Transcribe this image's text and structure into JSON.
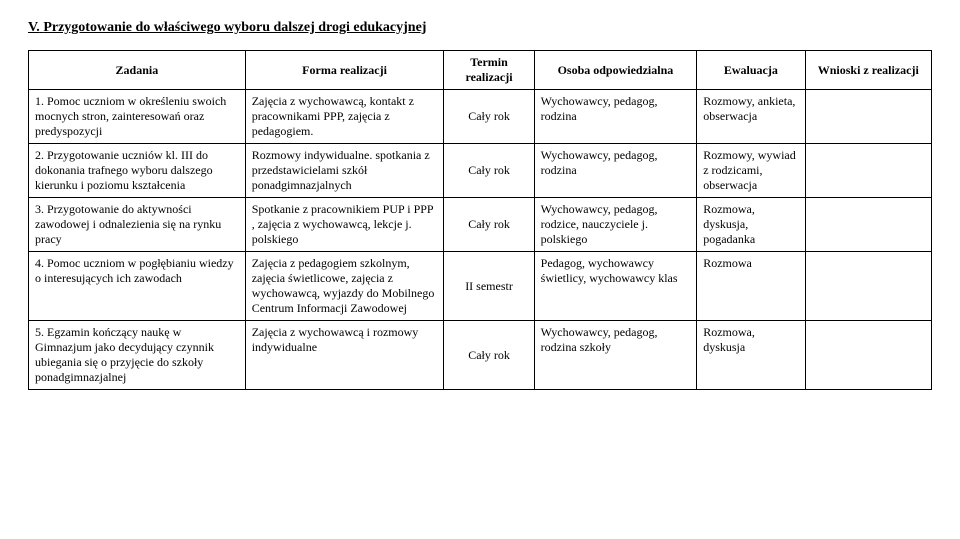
{
  "section": {
    "number": "V.",
    "title": "Przygotowanie do właściwego wyboru dalszej drogi edukacyjnej"
  },
  "headers": {
    "zadania": "Zadania",
    "forma": "Forma realizacji",
    "termin": "Termin realizacji",
    "osoba": "Osoba odpowiedzialna",
    "ewaluacja": "Ewaluacja",
    "wnioski": "Wnioski z realizacji"
  },
  "rows": [
    {
      "zadanie": "1. Pomoc uczniom w określeniu swoich mocnych stron, zainteresowań oraz predyspozycji",
      "forma": "Zajęcia z wychowawcą, kontakt z pracownikami PPP, zajęcia z pedagogiem.",
      "termin": "Cały rok",
      "osoba": "Wychowawcy, pedagog, rodzina",
      "ewaluacja": "Rozmowy, ankieta, obserwacja",
      "wnioski": ""
    },
    {
      "zadanie": "2. Przygotowanie uczniów kl. III do dokonania trafnego wyboru dalszego kierunku i poziomu kształcenia",
      "forma": "Rozmowy indywidualne. spotkania z przedstawicielami szkół ponadgimnazjalnych",
      "termin": "Cały rok",
      "osoba": "Wychowawcy, pedagog, rodzina",
      "ewaluacja": "Rozmowy, wywiad z rodzicami, obserwacja",
      "wnioski": ""
    },
    {
      "zadanie": "3. Przygotowanie do aktywności zawodowej i odnalezienia się na rynku pracy",
      "forma": "Spotkanie z pracownikiem PUP i PPP , zajęcia z wychowawcą, lekcje j. polskiego",
      "termin": "Cały rok",
      "osoba": "Wychowawcy, pedagog, rodzice, nauczyciele j. polskiego",
      "ewaluacja": "Rozmowa, dyskusja, pogadanka",
      "wnioski": ""
    },
    {
      "zadanie": "4. Pomoc uczniom w pogłębianiu wiedzy o interesujących ich zawodach",
      "forma": "Zajęcia z pedagogiem szkolnym, zajęcia świetlicowe, zajęcia z wychowawcą, wyjazdy do Mobilnego Centrum Informacji Zawodowej",
      "termin": "II semestr",
      "osoba": "Pedagog, wychowawcy świetlicy, wychowawcy klas",
      "ewaluacja": "Rozmowa",
      "wnioski": ""
    },
    {
      "zadanie": "5. Egzamin kończący naukę w Gimnazjum jako decydujący czynnik ubiegania się o przyjęcie do szkoły ponadgimnazjalnej",
      "forma": "Zajęcia z wychowawcą i rozmowy indywidualne",
      "termin": "Cały rok",
      "osoba": "Wychowawcy, pedagog, rodzina szkoły",
      "ewaluacja": "Rozmowa, dyskusja",
      "wnioski": ""
    }
  ]
}
